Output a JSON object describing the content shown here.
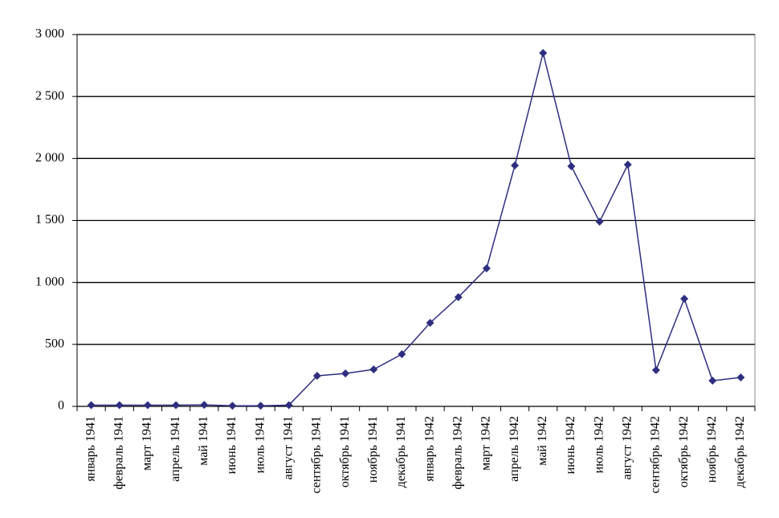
{
  "chart_data": {
    "type": "line",
    "categories": [
      "январь 1941",
      "февраль 1941",
      "март 1941",
      "апрель 1941",
      "май 1941",
      "июнь 1941",
      "июль 1941",
      "август 1941",
      "сентябрь 1941",
      "октябрь 1941",
      "ноябрь 1941",
      "декабрь 1941",
      "январь 1942",
      "февраль 1942",
      "март 1942",
      "апрель 1942",
      "май 1942",
      "июнь 1942",
      "июль 1942",
      "август 1942",
      "сентябрь 1942",
      "октябрь 1942",
      "ноябрь 1942",
      "декабрь 1942"
    ],
    "values": [
      10,
      10,
      10,
      10,
      12,
      5,
      5,
      10,
      246,
      266,
      298,
      421,
      674,
      881,
      1114,
      1944,
      2851,
      1937,
      1490,
      1950,
      292,
      868,
      207,
      233
    ],
    "color": "#2e2e80",
    "ylim": [
      0,
      3000
    ],
    "yticks": [
      0,
      500,
      {
        "value": 1000,
        "label": "1 000"
      },
      {
        "value": 1500,
        "label": "1 500"
      },
      {
        "value": 2000,
        "label": "2 000"
      },
      {
        "value": 2500,
        "label": "2 500"
      },
      {
        "value": 3000,
        "label": "3 000"
      }
    ],
    "grid": true
  }
}
